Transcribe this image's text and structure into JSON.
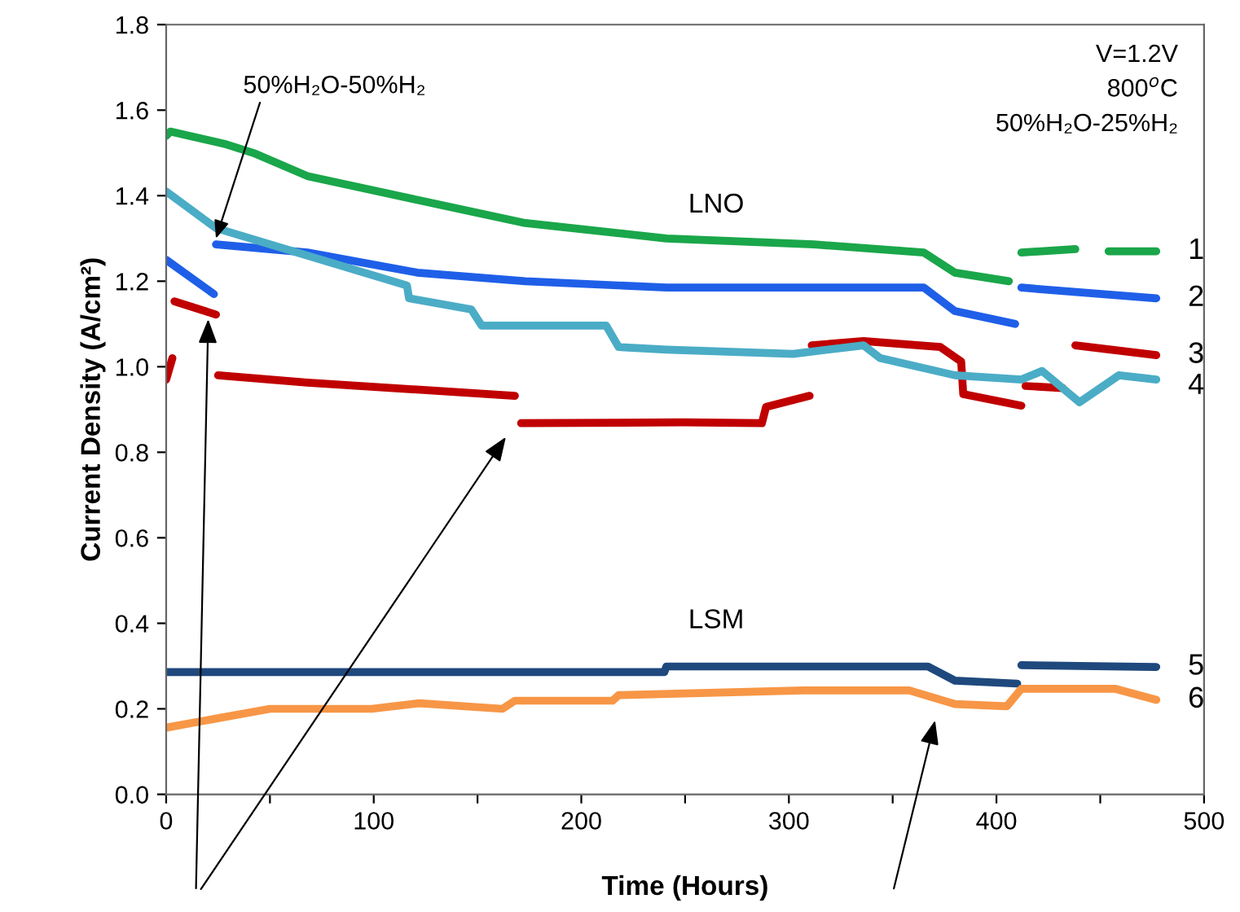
{
  "chart_data": {
    "type": "line",
    "xlabel": "Time (Hours)",
    "ylabel": "Current Density (A/cm²)",
    "xlim": [
      0,
      500
    ],
    "xticks": [
      0,
      {
        "value": 50,
        "label": null
      },
      100,
      {
        "value": 150,
        "label": null
      },
      200,
      {
        "value": 250,
        "label": null
      },
      300,
      {
        "value": 350,
        "label": null
      },
      400,
      {
        "value": 450,
        "label": null
      },
      500
    ],
    "ylim": [
      0,
      1.8
    ],
    "yticks": [
      {
        "value": 0,
        "label": "0.0"
      },
      {
        "value": 0.2,
        "label": "0.2"
      },
      {
        "value": 0.4,
        "label": "0.4"
      },
      {
        "value": 0.6,
        "label": "0.6"
      },
      {
        "value": 0.8,
        "label": "0.8"
      },
      {
        "value": 1.0,
        "label": "1.0"
      },
      {
        "value": 1.2,
        "label": "1.2"
      },
      {
        "value": 1.4,
        "label": "1.4"
      },
      {
        "value": 1.6,
        "label": "1.6"
      },
      {
        "value": 1.8,
        "label": "1.8"
      }
    ],
    "grid": false,
    "legend": false,
    "marker": "none",
    "line_style": "solid",
    "series": [
      {
        "name": "1",
        "color": "#1aa64a",
        "x": [
          0,
          2,
          29,
          42,
          68,
          121,
          173,
          241,
          312,
          365,
          380,
          406,
          409,
          412,
          438,
          446,
          454,
          477
        ],
        "values": [
          1.54,
          1.55,
          1.52,
          1.5,
          1.446,
          1.39,
          1.336,
          1.3,
          1.286,
          1.267,
          1.22,
          1.2,
          null,
          1.267,
          1.275,
          null,
          1.27,
          1.27
        ]
      },
      {
        "name": "2",
        "color": "#1f5fe8",
        "x": [
          0,
          23,
          23.5,
          24,
          68,
          121,
          173,
          241,
          365,
          380,
          409,
          410,
          412,
          477
        ],
        "values": [
          1.25,
          1.17,
          null,
          1.286,
          1.267,
          1.22,
          1.2,
          1.185,
          1.185,
          1.13,
          1.1,
          null,
          1.185,
          1.16
        ]
      },
      {
        "name": "3",
        "color": "#c00000",
        "x": [
          0,
          3,
          3.5,
          4,
          24,
          24.5,
          25,
          68,
          168,
          169,
          171,
          249,
          287,
          289,
          310,
          310.5,
          311,
          336,
          373,
          383,
          384,
          412,
          413,
          414,
          432,
          435,
          438,
          477
        ],
        "values": [
          0.97,
          1.02,
          null,
          1.153,
          1.122,
          null,
          0.98,
          0.963,
          0.932,
          null,
          0.868,
          0.87,
          0.868,
          0.906,
          0.932,
          null,
          1.05,
          1.06,
          1.046,
          1.012,
          0.936,
          0.909,
          null,
          0.955,
          0.95,
          null,
          1.05,
          1.027
        ]
      },
      {
        "name": "4",
        "color": "#4bacc6",
        "x": [
          0,
          24,
          68,
          116,
          117,
          147,
          152,
          212,
          218,
          241,
          302,
          336,
          344,
          380,
          412,
          422,
          440,
          459,
          477
        ],
        "values": [
          1.41,
          1.324,
          1.26,
          1.19,
          1.16,
          1.134,
          1.096,
          1.096,
          1.046,
          1.04,
          1.03,
          1.05,
          1.02,
          0.98,
          0.97,
          0.99,
          0.917,
          0.98,
          0.97
        ]
      },
      {
        "name": "5",
        "color": "#1f497d",
        "x": [
          0,
          240,
          241,
          367,
          380,
          410,
          411,
          412,
          477
        ],
        "values": [
          0.286,
          0.286,
          0.299,
          0.299,
          0.266,
          0.259,
          null,
          0.302,
          0.298
        ]
      },
      {
        "name": "6",
        "color": "#f79646",
        "x": [
          0,
          50,
          99,
          122,
          162,
          168,
          215,
          218,
          307,
          358,
          380,
          405,
          412,
          457,
          477
        ],
        "values": [
          0.156,
          0.2,
          0.2,
          0.213,
          0.2,
          0.219,
          0.219,
          0.232,
          0.243,
          0.243,
          0.211,
          0.206,
          0.247,
          0.247,
          0.221
        ]
      }
    ],
    "annotations": [
      "V=1.2V",
      "800$^{o}$C",
      "50%H₂O-25%H₂",
      "LNO",
      "LSM",
      {
        "text": "50%H₂O-50%H₂",
        "x": 24,
        "y": 1.3
      }
    ]
  }
}
